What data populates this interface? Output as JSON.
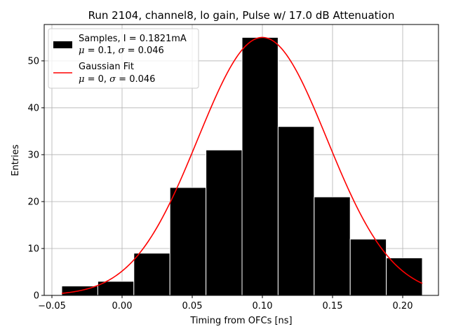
{
  "chart_data": {
    "type": "bar",
    "title": "Run 2104, channel8, lo gain, Pulse w/ 17.0 dB Attenuation",
    "xlabel": "Timing from OFCs [ns]",
    "ylabel": "Entries",
    "xlim": [
      -0.0555,
      0.2255
    ],
    "ylim": [
      0,
      57.75
    ],
    "grid": true,
    "xticks": [
      -0.05,
      0.0,
      0.05,
      0.1,
      0.15,
      0.2
    ],
    "xtick_labels": [
      "−0.05",
      "0.00",
      "0.05",
      "0.10",
      "0.15",
      "0.20"
    ],
    "yticks": [
      0,
      10,
      20,
      30,
      40,
      50
    ],
    "ytick_labels": [
      "0",
      "10",
      "20",
      "30",
      "40",
      "50"
    ],
    "bin_edges": [
      -0.043,
      -0.0173,
      0.0084,
      0.0341,
      0.0598,
      0.0855,
      0.1112,
      0.1369,
      0.1626,
      0.1883,
      0.214
    ],
    "counts": [
      2,
      3,
      9,
      23,
      31,
      55,
      36,
      21,
      12,
      8
    ],
    "fit": {
      "mu": 0.1,
      "sigma": 0.046,
      "amplitude": 55,
      "x_range": [
        -0.043,
        0.214
      ]
    },
    "legend_position": "upper-left",
    "legend": [
      {
        "line1": "Samples, I = 0.1821mA",
        "line2_mu": "μ",
        "line2_mid": " = 0.1, ",
        "line2_sigma": "σ",
        "line2_end": " = 0.046",
        "swatch": "bar"
      },
      {
        "line1": "Gaussian Fit",
        "line2_mu": "μ",
        "line2_mid": " = 0, ",
        "line2_sigma": "σ",
        "line2_end": " = 0.046",
        "swatch": "line"
      }
    ],
    "colors": {
      "bar": "#000000",
      "bar_edge": "#ffffff",
      "fit": "#ff0000",
      "grid": "#b0b0b0"
    }
  }
}
